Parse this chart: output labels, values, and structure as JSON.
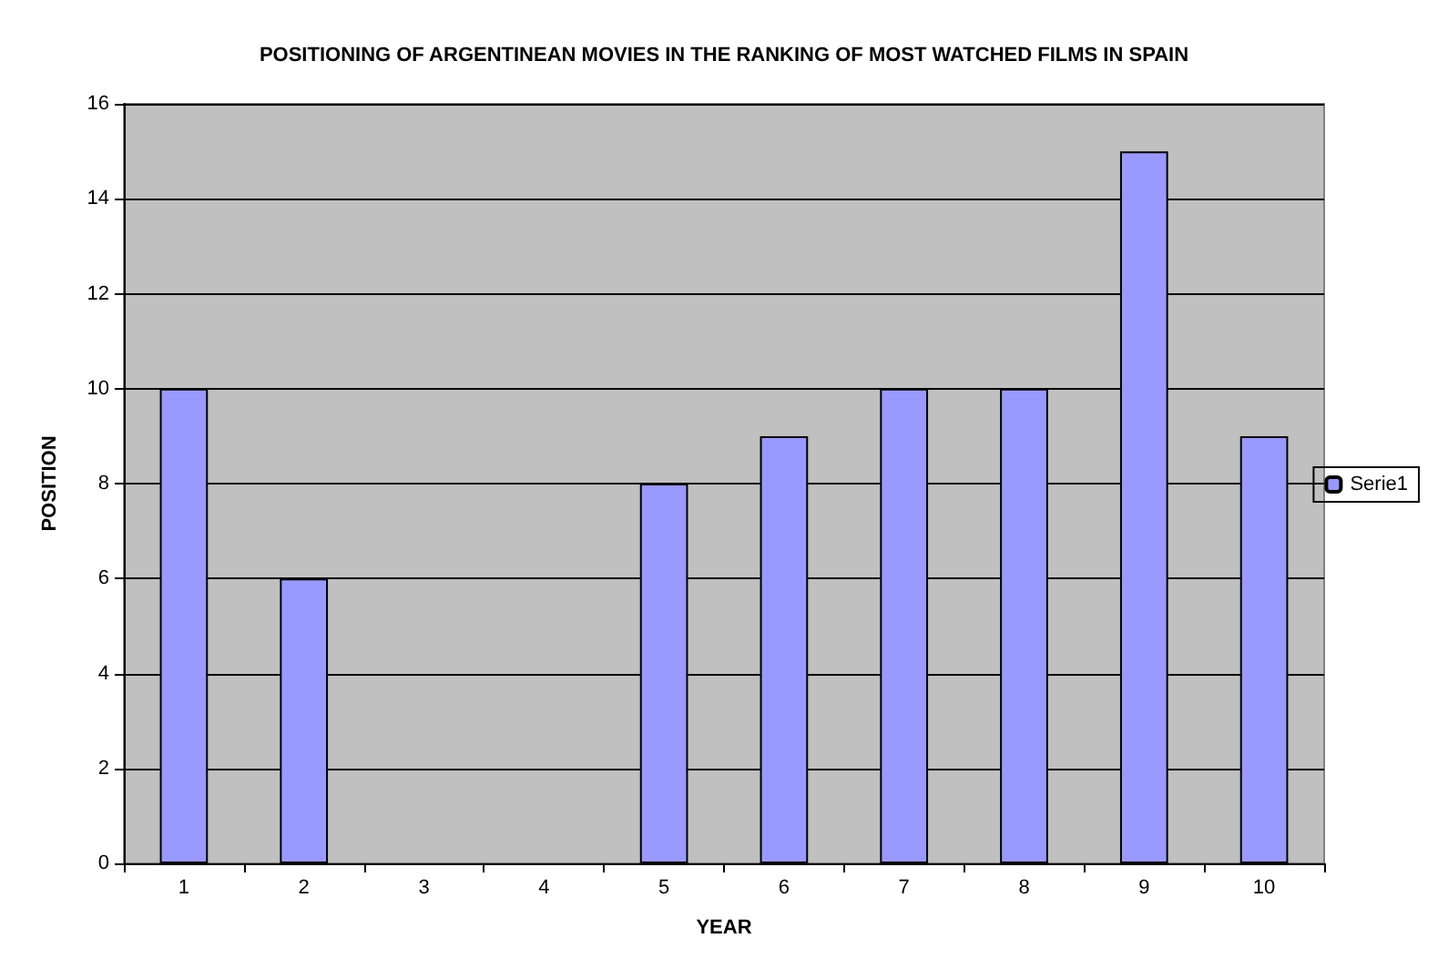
{
  "chart_data": {
    "type": "bar",
    "title": "POSITIONING OF ARGENTINEAN MOVIES IN THE RANKING OF MOST WATCHED FILMS IN SPAIN",
    "xlabel": "YEAR",
    "ylabel": "POSITION",
    "categories": [
      "1",
      "2",
      "3",
      "4",
      "5",
      "6",
      "7",
      "8",
      "9",
      "10"
    ],
    "series": [
      {
        "name": "Serie1",
        "color": "#9999ff",
        "values": [
          10,
          6,
          null,
          null,
          8,
          9,
          10,
          10,
          15,
          9
        ]
      }
    ],
    "ylim": [
      0,
      16
    ],
    "yticks": [
      0,
      2,
      4,
      6,
      8,
      10,
      12,
      14,
      16
    ],
    "grid": "y",
    "legend": "right"
  }
}
